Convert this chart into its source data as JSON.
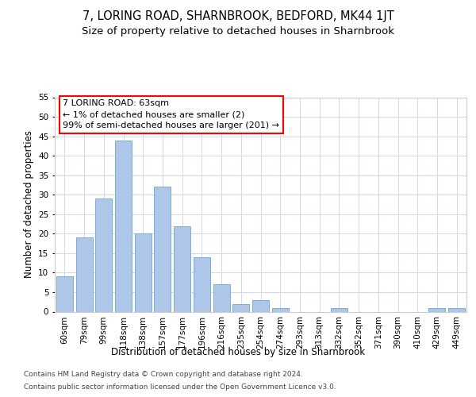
{
  "title": "7, LORING ROAD, SHARNBROOK, BEDFORD, MK44 1JT",
  "subtitle": "Size of property relative to detached houses in Sharnbrook",
  "xlabel": "Distribution of detached houses by size in Sharnbrook",
  "ylabel": "Number of detached properties",
  "categories": [
    "60sqm",
    "79sqm",
    "99sqm",
    "118sqm",
    "138sqm",
    "157sqm",
    "177sqm",
    "196sqm",
    "216sqm",
    "235sqm",
    "254sqm",
    "274sqm",
    "293sqm",
    "313sqm",
    "332sqm",
    "352sqm",
    "371sqm",
    "390sqm",
    "410sqm",
    "429sqm",
    "449sqm"
  ],
  "values": [
    9,
    19,
    29,
    44,
    20,
    32,
    22,
    14,
    7,
    2,
    3,
    1,
    0,
    0,
    1,
    0,
    0,
    0,
    0,
    1,
    1
  ],
  "bar_color": "#aec6e8",
  "bar_edge_color": "#7aafd4",
  "annotation_text": "7 LORING ROAD: 63sqm\n← 1% of detached houses are smaller (2)\n99% of semi-detached houses are larger (201) →",
  "annotation_box_color": "white",
  "annotation_box_edge": "red",
  "ylim": [
    0,
    55
  ],
  "yticks": [
    0,
    5,
    10,
    15,
    20,
    25,
    30,
    35,
    40,
    45,
    50,
    55
  ],
  "grid_color": "#d0d8e8",
  "background_color": "white",
  "footer_line1": "Contains HM Land Registry data © Crown copyright and database right 2024.",
  "footer_line2": "Contains public sector information licensed under the Open Government Licence v3.0.",
  "title_fontsize": 10.5,
  "subtitle_fontsize": 9.5,
  "axis_label_fontsize": 8.5,
  "tick_fontsize": 7.5,
  "annotation_fontsize": 8,
  "footer_fontsize": 6.5
}
